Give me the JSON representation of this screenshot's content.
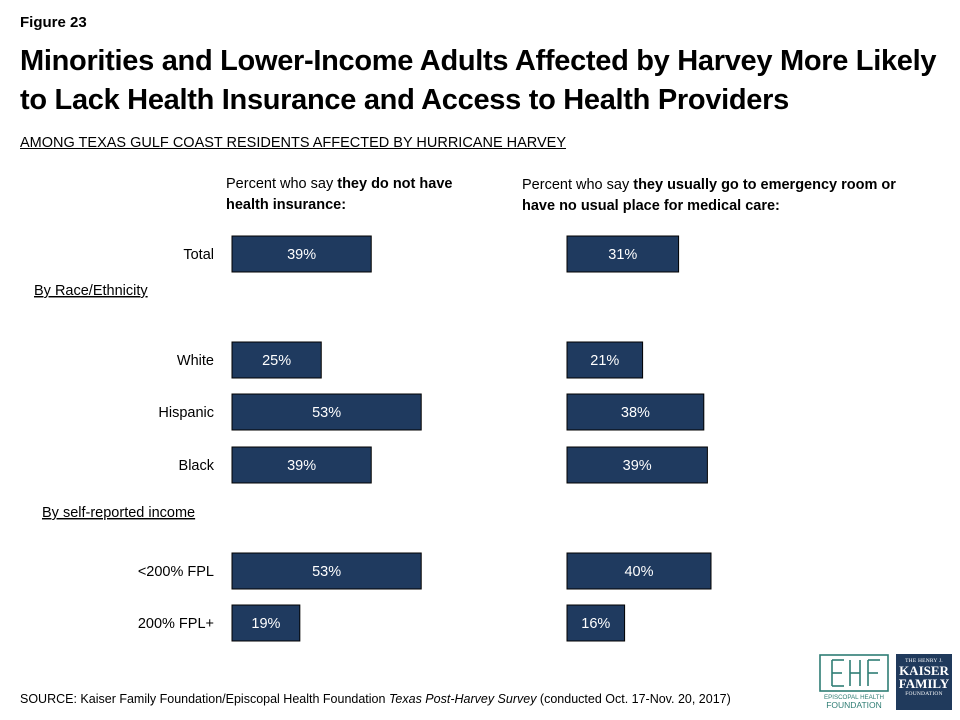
{
  "header": {
    "figure_label": "Figure 23",
    "title": "Minorities and Lower-Income Adults Affected by Harvey More Likely to Lack Health Insurance and Access to Health Providers",
    "subtitle": "AMONG TEXAS GULF COAST RESIDENTS AFFECTED BY HURRICANE HARVEY"
  },
  "panels": {
    "left": {
      "prefix": "Percent who say ",
      "bold": "they do not have health insurance:"
    },
    "right": {
      "prefix": "Percent who say ",
      "bold": "they usually go to emergency room or have no usual place for medical care:"
    }
  },
  "colors": {
    "bar": "#1f3a5f",
    "bar_border": "#000000",
    "label": "#ffffff"
  },
  "chart_data": {
    "type": "bar",
    "orientation": "horizontal",
    "rows": [
      {
        "label": "Total",
        "kind": "category",
        "values": [
          39,
          31
        ]
      },
      {
        "label": "By Race/Ethnicity",
        "kind": "group-header"
      },
      {
        "label": "White",
        "kind": "category",
        "values": [
          25,
          21
        ]
      },
      {
        "label": "Hispanic",
        "kind": "category",
        "values": [
          53,
          38
        ]
      },
      {
        "label": "Black",
        "kind": "category",
        "values": [
          39,
          39
        ]
      },
      {
        "label": "By self-reported income",
        "kind": "group-header"
      },
      {
        "label": "<200% FPL",
        "kind": "category",
        "values": [
          53,
          40
        ]
      },
      {
        "label": "200% FPL+",
        "kind": "category",
        "values": [
          19,
          16
        ]
      }
    ],
    "series": [
      {
        "values": [
          39,
          25,
          53,
          39,
          53,
          19
        ]
      },
      {
        "values": [
          31,
          21,
          38,
          39,
          40,
          16
        ]
      }
    ],
    "value_suffix": "%",
    "xlim": [
      0,
      100
    ],
    "grid": false,
    "legend": "none"
  },
  "footer": {
    "source_prefix": "SOURCE: Kaiser Family Foundation/Episcopal Health Foundation ",
    "source_title": "Texas Post-Harvey Survey",
    "source_suffix": " (conducted Oct. 17-Nov. 20, 2017)"
  },
  "logos": {
    "ehf": {
      "line1": "EPISCOPAL HEALTH",
      "line2": "FOUNDATION"
    },
    "kff": {
      "line1": "THE HENRY J.",
      "line2": "KAISER",
      "line3": "FAMILY",
      "line4": "FOUNDATION"
    }
  }
}
